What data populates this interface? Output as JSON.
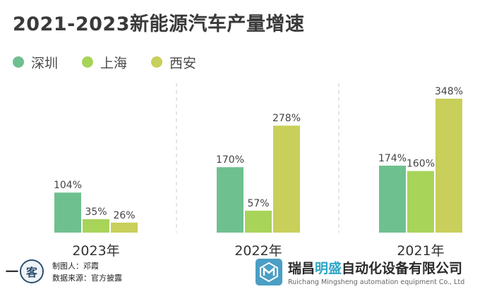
{
  "title": "2021-2023新能源汽车产量增速",
  "legend": [
    {
      "name": "深圳",
      "color": "#6fc08f"
    },
    {
      "name": "上海",
      "color": "#a8d45a"
    },
    {
      "name": "西安",
      "color": "#c8cf5a"
    }
  ],
  "chart_data": {
    "type": "bar",
    "categories": [
      "2023年",
      "2022年",
      "2021年"
    ],
    "series": [
      {
        "name": "深圳",
        "values": [
          104,
          170,
          174
        ],
        "labels": [
          "104%",
          "170%",
          "174%"
        ],
        "color": "#6fc08f"
      },
      {
        "name": "上海",
        "values": [
          35,
          57,
          160
        ],
        "labels": [
          "35%",
          "57%",
          "160%"
        ],
        "color": "#a8d45a"
      },
      {
        "name": "西安",
        "values": [
          26,
          278,
          348
        ],
        "labels": [
          "26%",
          "278%",
          "348%"
        ],
        "color": "#c8cf5a"
      }
    ],
    "ylim": [
      0,
      348
    ],
    "grid": false,
    "legend_position": "top-left"
  },
  "footer": {
    "logo_text": "一",
    "logo_circle": "客",
    "credit_author": "制图人：邓霞",
    "credit_source": "数据来源：官方披露"
  },
  "brand": {
    "name_part1": "瑞昌",
    "name_highlight": "明盛",
    "name_part2": "自动化设备有限公司",
    "english": "Ruichang Mingsheng automation equipment Co., Ltd"
  }
}
